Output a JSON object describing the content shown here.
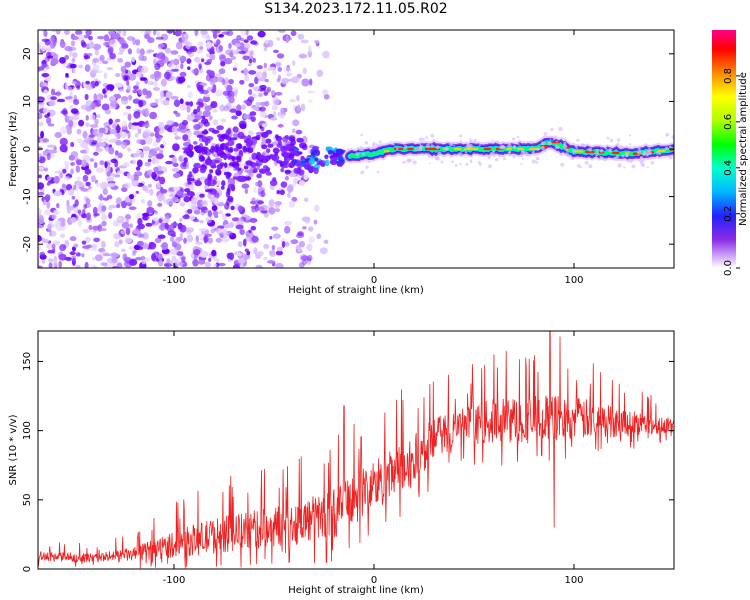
{
  "title": "S134.2023.172.11.05.R02",
  "chart_data": [
    {
      "type": "heatmap",
      "xlabel": "Height of straight line (km)",
      "ylabel": "Frequency (Hz)",
      "xlim": [
        -168,
        150
      ],
      "ylim": [
        -25,
        25
      ],
      "xticks": [
        -100,
        0,
        100
      ],
      "yticks": [
        -20,
        -10,
        0,
        10,
        20
      ],
      "colorbar": {
        "label": "Normalized spectral amplitude",
        "range": [
          0,
          1
        ],
        "ticks": [
          "0.0",
          "0.2",
          "0.4",
          "0.6",
          "0.8"
        ]
      },
      "colors": {
        "weak": "#a000ff",
        "strong": "#ff0000",
        "line_track": "#00ff66"
      },
      "description_of_structure": {
        "scatter_region_x": [
          -168,
          -20
        ],
        "convergence_x": [
          -40,
          -10
        ],
        "line_region_x": [
          -10,
          150
        ],
        "line_frequency_hz": [
          [
            -10,
            -1.5
          ],
          [
            0,
            -1
          ],
          [
            10,
            0
          ],
          [
            40,
            0
          ],
          [
            80,
            0
          ],
          [
            88,
            1.5
          ],
          [
            100,
            -0.5
          ],
          [
            130,
            -1
          ],
          [
            150,
            0
          ]
        ]
      }
    },
    {
      "type": "line",
      "xlabel": "Height of straight line (km)",
      "ylabel": "SNR (10 * v/v)",
      "xlim": [
        -168,
        150
      ],
      "ylim": [
        0,
        172
      ],
      "xticks": [
        -100,
        0,
        100
      ],
      "yticks": [
        0,
        50,
        100,
        150
      ],
      "color": "#ee2222",
      "envelope": {
        "x": [
          -168,
          -140,
          -120,
          -100,
          -80,
          -60,
          -40,
          -20,
          -10,
          0,
          10,
          20,
          30,
          40,
          60,
          80,
          100,
          120,
          150
        ],
        "mean": [
          8,
          7,
          9,
          15,
          20,
          24,
          28,
          35,
          45,
          55,
          62,
          72,
          88,
          98,
          102,
          103,
          104,
          103,
          102
        ],
        "spread": [
          6,
          5,
          8,
          15,
          20,
          22,
          24,
          28,
          30,
          30,
          30,
          30,
          25,
          20,
          25,
          28,
          25,
          18,
          8
        ]
      },
      "peaks": [
        {
          "x": -15,
          "y": 118
        },
        {
          "x": 60,
          "y": 155
        },
        {
          "x": 88,
          "y": 172
        },
        {
          "x": 93,
          "y": 168
        },
        {
          "x": 90,
          "y": 30
        }
      ]
    }
  ]
}
